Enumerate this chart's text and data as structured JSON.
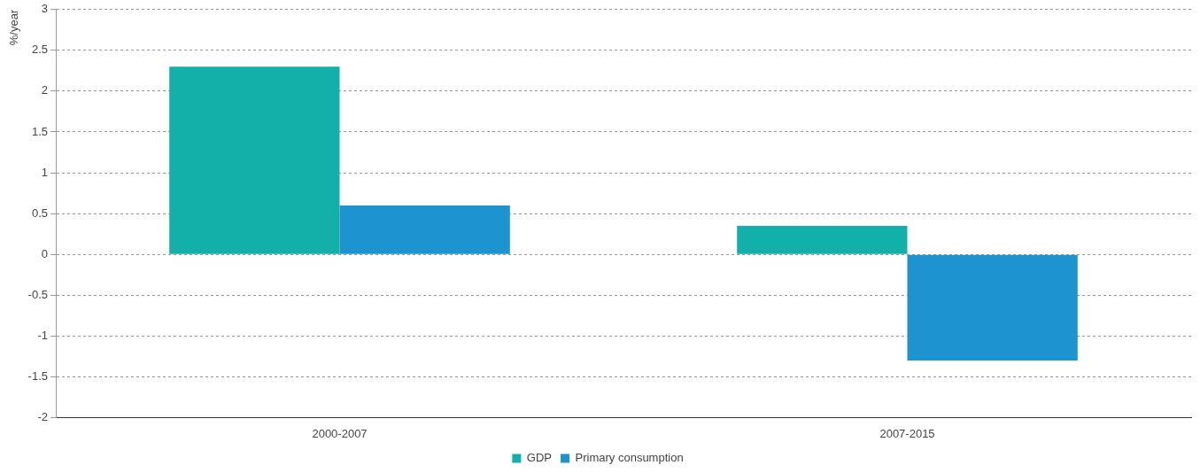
{
  "chart_data": {
    "type": "bar",
    "ylabel": "%/year",
    "categories": [
      "2000-2007",
      "2007-2015"
    ],
    "series": [
      {
        "name": "GDP",
        "color": "#13b0aa",
        "values": [
          2.3,
          0.35
        ]
      },
      {
        "name": "Primary consumption",
        "color": "#1d94cf",
        "values": [
          0.6,
          -1.3
        ]
      }
    ],
    "ylim": [
      -2,
      3
    ],
    "yticks": [
      -2,
      -1.5,
      -1,
      -0.5,
      0,
      0.5,
      1,
      1.5,
      2,
      2.5,
      3
    ],
    "grid": "y",
    "legend": "bottom"
  }
}
